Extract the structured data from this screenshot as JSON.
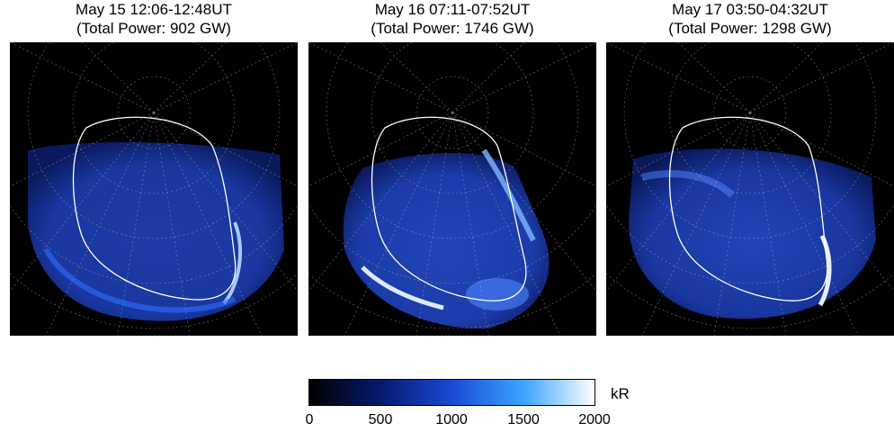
{
  "panels": [
    {
      "title_line1": "May 15 12:06-12:48UT",
      "title_line2": "(Total Power: 902 GW)"
    },
    {
      "title_line1": "May 16 07:11-07:52UT",
      "title_line2": "(Total Power: 1746 GW)"
    },
    {
      "title_line1": "May 17 03:50-04:32UT",
      "title_line2": "(Total Power: 1298 GW)"
    }
  ],
  "colorbar": {
    "unit": "kR",
    "ticks": [
      "0",
      "500",
      "1000",
      "1500",
      "2000"
    ],
    "colors": [
      "#000000",
      "#061a6e",
      "#1a49d6",
      "#3aa3ff",
      "#ffffff"
    ]
  }
}
